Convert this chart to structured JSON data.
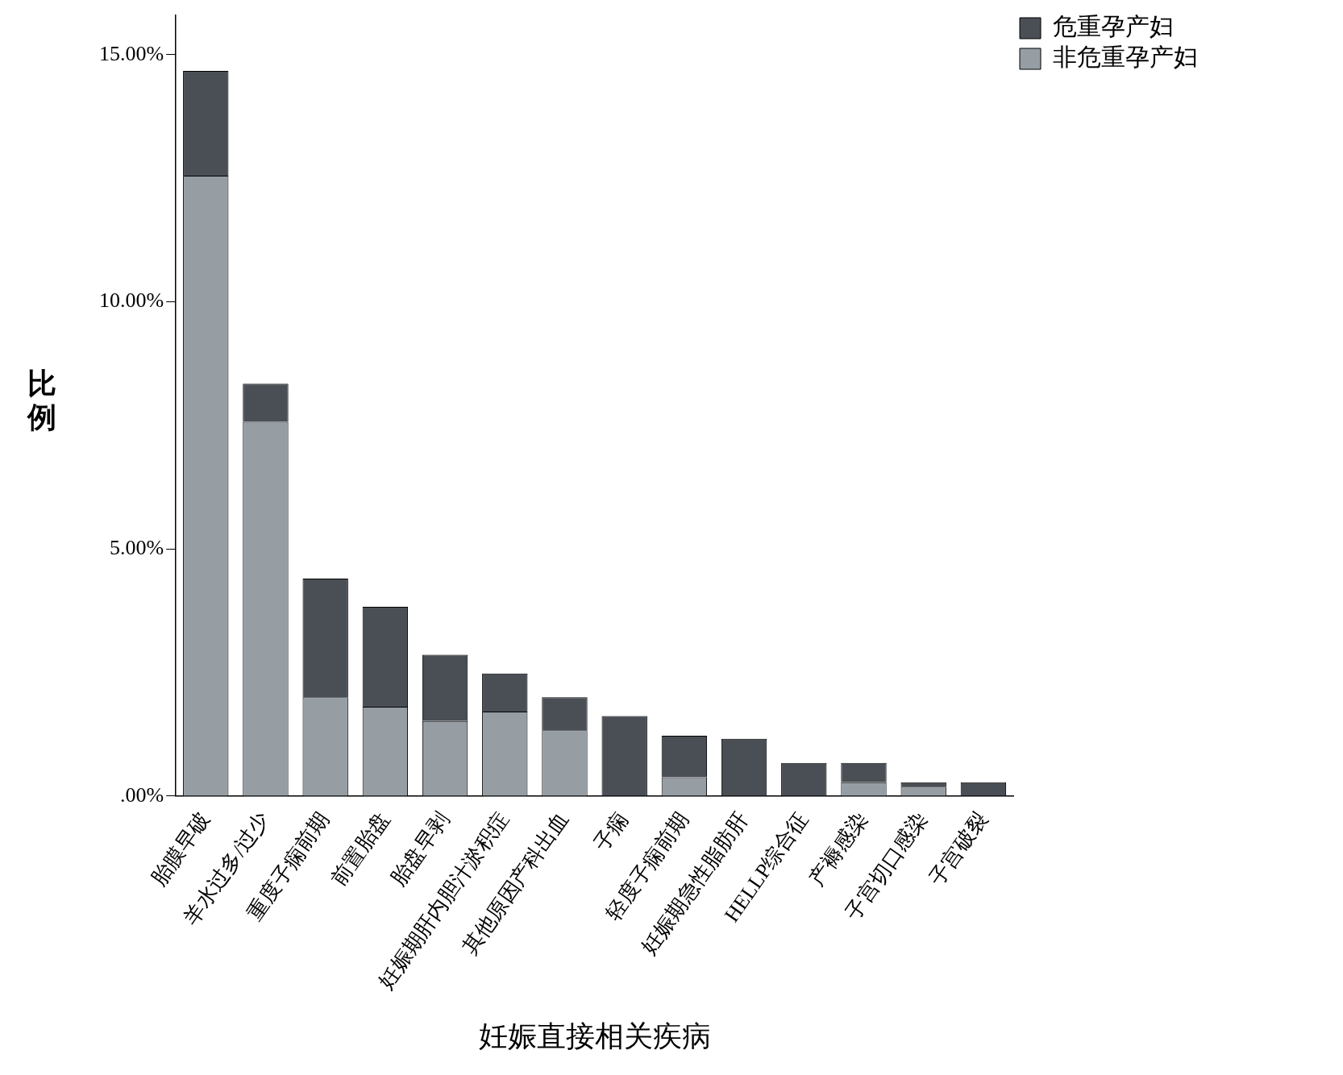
{
  "chart_data": {
    "type": "bar",
    "stacked": true,
    "xlabel": "妊娠直接相关疾病",
    "ylabel": "比例",
    "categories": [
      "胎膜早破",
      "羊水过多/过少",
      "重度子痫前期",
      "前置胎盘",
      "胎盘早剥",
      "妊娠期肝内胆汁淤积症",
      "其他原因产科出血",
      "子痫",
      "轻度子痫前期",
      "妊娠期急性脂肪肝",
      "HELLP综合征",
      "产褥感染",
      "子宫切口感染",
      "子宫破裂"
    ],
    "series": [
      {
        "name": "非危重孕产妇",
        "color": "#969ea4",
        "values": [
          12.55,
          7.57,
          2.0,
          1.81,
          1.52,
          1.71,
          1.33,
          0,
          0.38,
          0,
          0,
          0.28,
          0.19,
          0
        ]
      },
      {
        "name": "危重孕产妇",
        "color": "#4a4f55",
        "values": [
          2.12,
          0.77,
          2.4,
          2.02,
          1.34,
          0.77,
          0.67,
          1.62,
          0.84,
          1.16,
          0.67,
          0.39,
          0.09,
          0.28
        ]
      }
    ],
    "ylim": [
      0,
      15.8
    ],
    "yticks": [
      {
        "value": 0,
        "label": ".00%"
      },
      {
        "value": 5,
        "label": "5.00%"
      },
      {
        "value": 10,
        "label": "10.00%"
      },
      {
        "value": 15,
        "label": "15.00%"
      }
    ],
    "grid": false,
    "legend": "top right"
  }
}
